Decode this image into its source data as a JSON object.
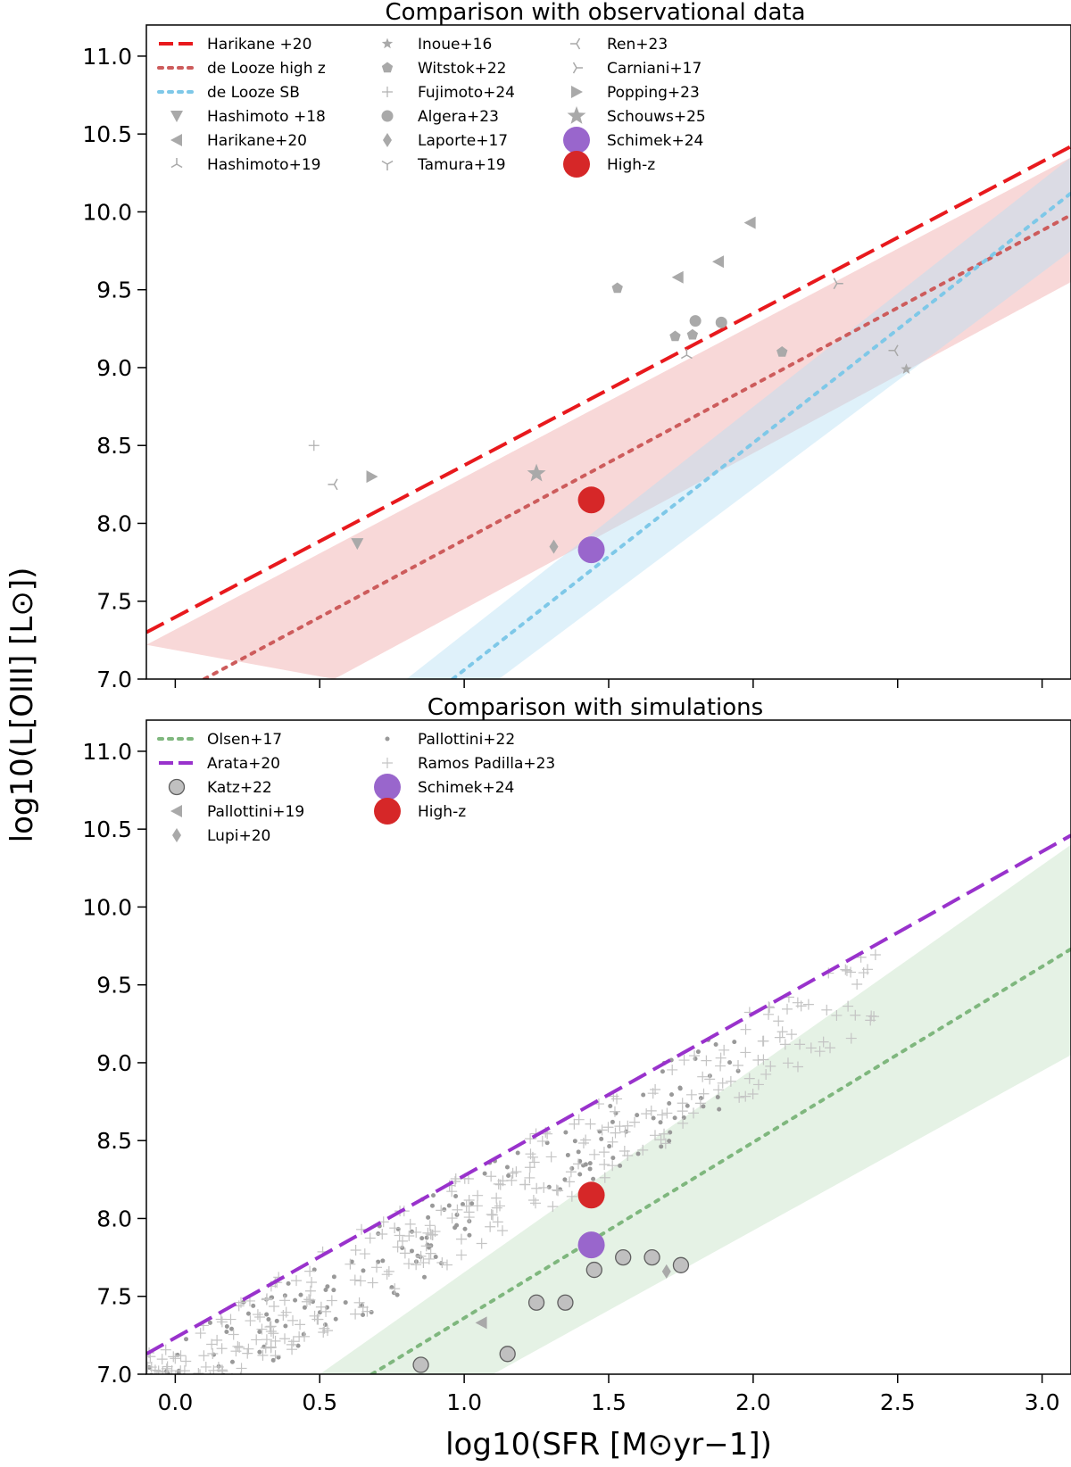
{
  "figure": {
    "ylabel": "log10(L[OIII] [L⊙])",
    "xlabel": "log10(SFR [M⊙yr−1])"
  },
  "chart_data": [
    {
      "type": "line",
      "title": "Comparison with observational data",
      "xlim": [
        -0.1,
        3.1
      ],
      "ylim": [
        7.0,
        11.2
      ],
      "yticks": [
        7.0,
        7.5,
        8.0,
        8.5,
        9.0,
        9.5,
        10.0,
        10.5,
        11.0
      ],
      "xticks": [
        0.0,
        0.5,
        1.0,
        1.5,
        2.0,
        2.5,
        3.0
      ],
      "lines": [
        {
          "name": "Harikane +20",
          "style": "dashed",
          "color": "#e8191d",
          "x": [
            -0.1,
            3.1
          ],
          "y": [
            7.3,
            10.42
          ]
        },
        {
          "name": "de Looze high z",
          "style": "dotted",
          "color": "#cd5c5c",
          "x": [
            0.1,
            3.1
          ],
          "y": [
            7.0,
            9.98
          ]
        },
        {
          "name": "de Looze SB",
          "style": "dotted",
          "color": "#7ec8e8",
          "x": [
            0.96,
            3.1
          ],
          "y": [
            7.0,
            10.12
          ]
        }
      ],
      "bands": [
        {
          "name": "de Looze high z range",
          "color": "#f0a8a8",
          "upper": {
            "x": [
              -0.1,
              3.1
            ],
            "y": [
              7.22,
              10.35
            ]
          },
          "lower": {
            "x": [
              0.55,
              3.1
            ],
            "y": [
              7.0,
              9.55
            ]
          }
        },
        {
          "name": "de Looze SB range",
          "color": "#b8e0f4",
          "upper": {
            "x": [
              0.8,
              3.1
            ],
            "y": [
              7.0,
              10.35
            ]
          },
          "lower": {
            "x": [
              1.12,
              3.1
            ],
            "y": [
              7.0,
              9.75
            ]
          }
        }
      ],
      "series": [
        {
          "name": "Hashimoto +18",
          "marker": "triangle-down",
          "points": [
            [
              0.63,
              7.87
            ]
          ]
        },
        {
          "name": "Harikane+20",
          "marker": "triangle-left",
          "points": [
            [
              1.74,
              9.58
            ],
            [
              1.88,
              9.68
            ],
            [
              1.99,
              9.93
            ]
          ]
        },
        {
          "name": "Hashimoto+19",
          "marker": "tri-up",
          "points": [
            [
              1.77,
              9.08
            ]
          ]
        },
        {
          "name": "Inoue+16",
          "marker": "star",
          "points": [
            [
              2.53,
              8.99
            ]
          ]
        },
        {
          "name": "Witstok+22",
          "marker": "pentagon",
          "points": [
            [
              1.53,
              9.51
            ],
            [
              1.73,
              9.2
            ],
            [
              1.79,
              9.21
            ],
            [
              2.1,
              9.1
            ]
          ]
        },
        {
          "name": "Fujimoto+24",
          "marker": "plus",
          "points": [
            [
              0.48,
              8.5
            ]
          ]
        },
        {
          "name": "Algera+23",
          "marker": "circle",
          "points": [
            [
              1.8,
              9.3
            ],
            [
              1.89,
              9.29
            ]
          ]
        },
        {
          "name": "Laporte+17",
          "marker": "diamond",
          "points": [
            [
              1.31,
              7.85
            ]
          ]
        },
        {
          "name": "Tamura+19",
          "marker": "tri-down",
          "points": []
        },
        {
          "name": "Ren+23",
          "marker": "tri-left",
          "points": [
            [
              0.55,
              8.25
            ],
            [
              2.49,
              9.11
            ]
          ]
        },
        {
          "name": "Carniani+17",
          "marker": "tri-right",
          "points": [
            [
              2.29,
              9.54
            ]
          ]
        },
        {
          "name": "Popping+23",
          "marker": "triangle-right",
          "points": [
            [
              0.68,
              8.3
            ]
          ]
        },
        {
          "name": "Schouws+25",
          "marker": "big-star",
          "points": [
            [
              1.25,
              8.32
            ]
          ]
        },
        {
          "name": "Schimek+24",
          "marker": "big-circle",
          "color": "#9966cc",
          "points": [
            [
              1.44,
              7.83
            ]
          ]
        },
        {
          "name": "High-z",
          "marker": "big-circle",
          "color": "#d62728",
          "points": [
            [
              1.44,
              8.15
            ]
          ]
        }
      ],
      "legend": [
        [
          "Harikane +20",
          "de Looze high z",
          "de Looze SB",
          "Hashimoto +18",
          "Harikane+20",
          "Hashimoto+19"
        ],
        [
          "Inoue+16",
          "Witstok+22",
          "Fujimoto+24",
          "Algera+23",
          "Laporte+17",
          "Tamura+19"
        ],
        [
          "Ren+23",
          "Carniani+17",
          "Popping+23",
          "Schouws+25",
          "Schimek+24",
          "High-z"
        ]
      ]
    },
    {
      "type": "line",
      "title": "Comparison with simulations",
      "xlim": [
        -0.1,
        3.1
      ],
      "ylim": [
        7.0,
        11.2
      ],
      "yticks": [
        7.0,
        7.5,
        8.0,
        8.5,
        9.0,
        9.5,
        10.0,
        10.5,
        11.0
      ],
      "xticks": [
        0.0,
        0.5,
        1.0,
        1.5,
        2.0,
        2.5,
        3.0
      ],
      "xticklabels": [
        "0.0",
        "0.5",
        "1.0",
        "1.5",
        "2.0",
        "2.5",
        "3.0"
      ],
      "lines": [
        {
          "name": "Olsen+17",
          "style": "dotted",
          "color": "#7fb77e",
          "x": [
            0.68,
            3.1
          ],
          "y": [
            7.0,
            9.73
          ]
        },
        {
          "name": "Arata+20",
          "style": "dashed",
          "color": "#9932cc",
          "x": [
            -0.1,
            3.1
          ],
          "y": [
            7.13,
            10.46
          ]
        }
      ],
      "bands": [
        {
          "name": "Olsen+17 range",
          "color": "#c5e3c5",
          "upper": {
            "x": [
              0.5,
              3.1
            ],
            "y": [
              7.0,
              10.4
            ]
          },
          "lower": {
            "x": [
              1.1,
              3.1
            ],
            "y": [
              7.0,
              9.05
            ]
          }
        }
      ],
      "scatter_clouds": [
        {
          "name": "Pallottini+22",
          "marker": "small-dot",
          "count": 170,
          "x_range": [
            -0.1,
            1.95
          ],
          "center_slope": 1.04,
          "center_intercept": 7.1
        },
        {
          "name": "Ramos Padilla+23",
          "marker": "plus",
          "count": 340,
          "x_range": [
            -0.1,
            2.45
          ],
          "center_slope": 1.04,
          "center_intercept": 7.12
        }
      ],
      "series": [
        {
          "name": "Katz+22",
          "marker": "circle-large",
          "points": [
            [
              0.85,
              7.06
            ],
            [
              1.15,
              7.13
            ],
            [
              1.25,
              7.46
            ],
            [
              1.35,
              7.46
            ],
            [
              1.45,
              7.67
            ],
            [
              1.55,
              7.75
            ],
            [
              1.65,
              7.75
            ],
            [
              1.75,
              7.7
            ]
          ]
        },
        {
          "name": "Pallottini+19",
          "marker": "triangle-left",
          "points": [
            [
              1.06,
              7.33
            ]
          ]
        },
        {
          "name": "Lupi+20",
          "marker": "diamond",
          "points": [
            [
              1.7,
              7.66
            ]
          ]
        },
        {
          "name": "Schimek+24",
          "marker": "big-circle",
          "color": "#9966cc",
          "points": [
            [
              1.44,
              7.83
            ]
          ]
        },
        {
          "name": "High-z",
          "marker": "big-circle",
          "color": "#d62728",
          "points": [
            [
              1.44,
              8.15
            ]
          ]
        }
      ],
      "legend": [
        [
          "Olsen+17",
          "Arata+20",
          "Katz+22",
          "Pallottini+19",
          "Lupi+20"
        ],
        [
          "Pallottini+22",
          "Ramos Padilla+23",
          "Schimek+24",
          "High-z"
        ]
      ]
    }
  ]
}
